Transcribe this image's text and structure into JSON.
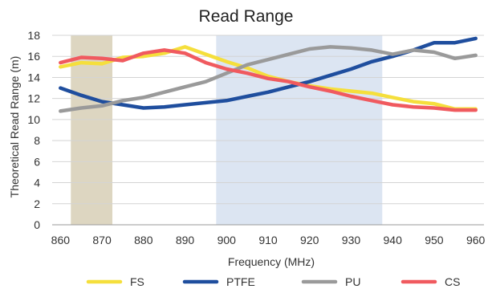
{
  "chart_data": {
    "type": "line",
    "title": "Read Range",
    "xlabel": "Frequency (MHz)",
    "ylabel": "Theoretical Read Range (m)",
    "xlim": [
      858,
      962
    ],
    "ylim": [
      0,
      18
    ],
    "xticks": [
      860,
      870,
      880,
      890,
      900,
      910,
      920,
      930,
      940,
      950,
      960
    ],
    "yticks": [
      0,
      2,
      4,
      6,
      8,
      10,
      12,
      14,
      16,
      18
    ],
    "grid": "horizontal",
    "legend_position": "bottom",
    "shaded_bands": [
      {
        "x_start": 862.5,
        "x_end": 872.5,
        "color": "#DDD6C1"
      },
      {
        "x_start": 897.5,
        "x_end": 937.5,
        "color": "#DCE5F2"
      }
    ],
    "x": [
      860,
      865,
      870,
      875,
      880,
      885,
      890,
      895,
      900,
      905,
      910,
      915,
      920,
      925,
      930,
      935,
      940,
      945,
      950,
      955,
      960
    ],
    "series": [
      {
        "name": "FS",
        "color": "#F5DF3C",
        "values": [
          15.0,
          15.4,
          15.3,
          15.9,
          16.0,
          16.3,
          16.9,
          16.2,
          15.5,
          14.9,
          14.1,
          13.6,
          13.2,
          12.9,
          12.7,
          12.5,
          12.1,
          11.7,
          11.5,
          11.0,
          11.0
        ]
      },
      {
        "name": "PTFE",
        "color": "#1F4E9E",
        "values": [
          13.0,
          12.3,
          11.7,
          11.4,
          11.1,
          11.2,
          11.4,
          11.6,
          11.8,
          12.2,
          12.6,
          13.1,
          13.6,
          14.2,
          14.8,
          15.5,
          16.0,
          16.6,
          17.3,
          17.3,
          17.7
        ]
      },
      {
        "name": "PU",
        "color": "#9A9A9A",
        "values": [
          10.8,
          11.1,
          11.3,
          11.8,
          12.1,
          12.6,
          13.1,
          13.6,
          14.4,
          15.2,
          15.7,
          16.2,
          16.7,
          16.9,
          16.8,
          16.6,
          16.2,
          16.6,
          16.4,
          15.8,
          16.1
        ]
      },
      {
        "name": "CS",
        "color": "#F05A5F",
        "values": [
          15.4,
          15.9,
          15.8,
          15.6,
          16.3,
          16.6,
          16.3,
          15.4,
          14.8,
          14.4,
          13.9,
          13.6,
          13.1,
          12.7,
          12.2,
          11.8,
          11.4,
          11.2,
          11.1,
          10.9,
          10.9
        ]
      }
    ]
  }
}
